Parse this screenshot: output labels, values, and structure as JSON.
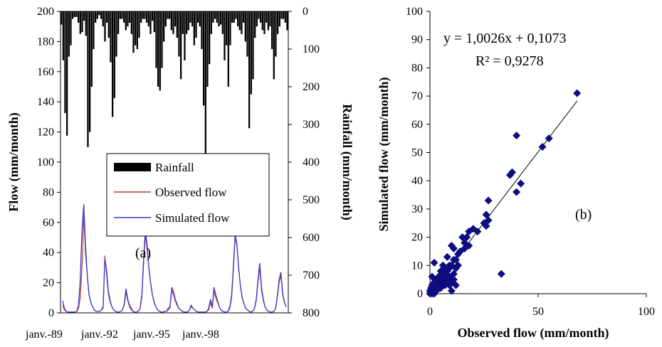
{
  "chart_data": [
    {
      "type": "line",
      "panel_label": "(a)",
      "ylabel": "Flow (mm/month)",
      "ylim": [
        0,
        200
      ],
      "yticks": [
        "0",
        "20",
        "40",
        "60",
        "80",
        "100",
        "120",
        "140",
        "160",
        "180",
        "200"
      ],
      "y2label": "Rainfall (mm/month)",
      "y2lim": [
        0,
        800
      ],
      "y2_inverted": true,
      "y2ticks": [
        "0",
        "100",
        "200",
        "300",
        "400",
        "500",
        "600",
        "700",
        "800"
      ],
      "xticklabels": [
        "janv.-89",
        "janv.-92",
        "janv.-95",
        "janv.-98"
      ],
      "legend": [
        "Rainfall",
        "Observed flow",
        "Simulated flow"
      ],
      "legend_position": "center",
      "series_colors": {
        "rainfall": "#000000",
        "observed": "#c0392b",
        "simulated": "#3a3acf"
      },
      "rainfall": [
        35,
        130,
        270,
        330,
        120,
        90,
        20,
        15,
        15,
        30,
        60,
        55,
        25,
        65,
        360,
        320,
        200,
        100,
        30,
        20,
        10,
        20,
        40,
        80,
        30,
        70,
        135,
        280,
        230,
        120,
        60,
        20,
        20,
        30,
        50,
        40,
        30,
        60,
        110,
        90,
        100,
        70,
        30,
        20,
        20,
        30,
        40,
        60,
        25,
        55,
        150,
        200,
        210,
        150,
        80,
        40,
        20,
        20,
        50,
        60,
        40,
        70,
        120,
        180,
        60,
        130,
        60,
        50,
        30,
        40,
        90,
        70,
        30,
        40,
        100,
        250,
        480,
        200,
        140,
        60,
        30,
        20,
        30,
        40,
        35,
        60,
        130,
        90,
        200,
        90,
        30,
        30,
        20,
        40,
        50,
        60,
        30,
        80,
        120,
        310,
        220,
        180,
        70,
        40,
        20,
        30,
        50,
        60,
        30,
        50,
        40,
        100,
        180,
        120,
        60,
        40,
        20,
        20,
        30,
        50
      ],
      "observed": [
        5,
        2,
        1,
        0.5,
        0.5,
        0.5,
        0.5,
        0.5,
        1,
        3,
        10,
        30,
        65,
        40,
        25,
        12,
        7,
        4,
        2,
        1,
        1,
        1,
        2,
        3,
        38,
        25,
        12,
        7,
        4,
        2,
        1,
        0.5,
        0.5,
        1,
        2,
        5,
        14,
        8,
        4,
        2,
        1,
        0.5,
        0.5,
        1,
        3,
        10,
        33,
        52,
        42,
        30,
        20,
        12,
        7,
        4,
        2,
        1,
        0.5,
        0.5,
        1,
        1,
        2,
        3,
        15,
        12,
        8,
        5,
        3,
        2,
        1,
        0.5,
        0.5,
        0.5,
        2,
        4,
        3,
        2,
        1,
        0.5,
        0.5,
        0.5,
        0.5,
        0.5,
        1,
        2,
        7,
        3,
        15,
        10,
        7,
        4,
        2,
        1,
        0.5,
        0.5,
        1,
        3,
        10,
        28,
        50,
        45,
        30,
        18,
        10,
        6,
        3,
        2,
        1,
        0.5,
        1,
        3,
        8,
        20,
        30,
        15,
        8,
        4,
        2,
        1,
        0.5,
        0.5,
        1,
        3,
        10,
        20,
        25,
        12,
        7,
        4
      ],
      "simulated": [
        8,
        3,
        1,
        0.5,
        0.5,
        0.5,
        0.5,
        0.5,
        1,
        5,
        22,
        55,
        72,
        45,
        25,
        12,
        7,
        4,
        2,
        1,
        1,
        1,
        2,
        4,
        36,
        28,
        14,
        8,
        4,
        2,
        1,
        0.5,
        0.5,
        1,
        2,
        6,
        16,
        9,
        5,
        3,
        1,
        0.5,
        0.5,
        1,
        3,
        12,
        36,
        55,
        45,
        30,
        20,
        12,
        7,
        4,
        2,
        1,
        0.5,
        0.5,
        1,
        1,
        3,
        4,
        17,
        14,
        9,
        6,
        3,
        2,
        1,
        0.5,
        0.5,
        0.5,
        2,
        5,
        3,
        2,
        1,
        0.5,
        0.5,
        0.5,
        0.5,
        0.5,
        1,
        3,
        9,
        4,
        17,
        12,
        8,
        4,
        2,
        1,
        0.5,
        0.5,
        1,
        4,
        12,
        30,
        52,
        46,
        30,
        18,
        10,
        6,
        3,
        2,
        1,
        0.5,
        1,
        3,
        9,
        22,
        33,
        17,
        9,
        4,
        2,
        1,
        0.5,
        0.5,
        1,
        3,
        11,
        22,
        27,
        13,
        7,
        4
      ]
    },
    {
      "type": "scatter",
      "panel_label": "(b)",
      "xlabel": "Observed flow (mm/month)",
      "ylabel": "Simulated flow (mm/month)",
      "xlim": [
        0,
        100
      ],
      "ylim": [
        0,
        100
      ],
      "xticks": [
        "0",
        "50",
        "100"
      ],
      "yticks": [
        "0",
        "10",
        "20",
        "30",
        "40",
        "50",
        "60",
        "70",
        "80",
        "90",
        "100"
      ],
      "equation": "y = 1,0026x + 0,1073",
      "r_squared": "R² = 0,9278",
      "trendline": {
        "slope": 1.0026,
        "intercept": 0.1073,
        "x_range": [
          0,
          68
        ]
      },
      "marker_color": "#0d0d80",
      "points": [
        [
          68,
          71
        ],
        [
          55,
          55
        ],
        [
          52,
          52
        ],
        [
          40,
          56
        ],
        [
          42,
          39
        ],
        [
          40,
          36
        ],
        [
          38,
          43
        ],
        [
          37,
          42
        ],
        [
          33,
          7
        ],
        [
          27,
          33
        ],
        [
          27,
          26
        ],
        [
          26,
          28
        ],
        [
          26,
          24
        ],
        [
          25,
          25
        ],
        [
          22,
          22
        ],
        [
          20,
          23
        ],
        [
          18,
          17
        ],
        [
          18,
          22
        ],
        [
          17,
          20
        ],
        [
          16,
          16
        ],
        [
          16,
          18
        ],
        [
          15,
          20
        ],
        [
          14,
          15
        ],
        [
          13,
          14
        ],
        [
          12,
          12
        ],
        [
          11,
          16
        ],
        [
          11,
          12
        ],
        [
          10,
          10
        ],
        [
          10,
          17
        ],
        [
          9,
          10
        ],
        [
          9,
          9
        ],
        [
          9,
          3
        ],
        [
          10,
          1
        ],
        [
          8,
          8
        ],
        [
          8,
          13
        ],
        [
          7,
          7
        ],
        [
          7,
          9
        ],
        [
          6,
          6
        ],
        [
          6,
          10
        ],
        [
          5,
          5
        ],
        [
          5,
          8
        ],
        [
          4,
          4
        ],
        [
          4,
          6
        ],
        [
          3,
          3
        ],
        [
          3,
          5
        ],
        [
          2,
          2
        ],
        [
          2,
          11
        ],
        [
          2,
          4
        ],
        [
          1,
          1
        ],
        [
          1,
          6
        ],
        [
          1,
          3
        ],
        [
          0.5,
          0.5
        ],
        [
          0.5,
          2
        ],
        [
          0.5,
          1
        ],
        [
          0,
          0
        ],
        [
          0,
          1
        ],
        [
          1,
          0
        ],
        [
          2,
          0
        ],
        [
          3,
          1
        ],
        [
          6,
          4
        ],
        [
          7,
          3
        ],
        [
          8,
          5
        ],
        [
          12,
          9
        ],
        [
          13,
          10
        ],
        [
          11,
          5
        ],
        [
          5,
          2
        ],
        [
          9,
          6
        ],
        [
          4,
          2
        ],
        [
          6,
          3
        ],
        [
          10,
          4
        ],
        [
          12,
          3
        ],
        [
          11,
          7
        ]
      ]
    }
  ]
}
